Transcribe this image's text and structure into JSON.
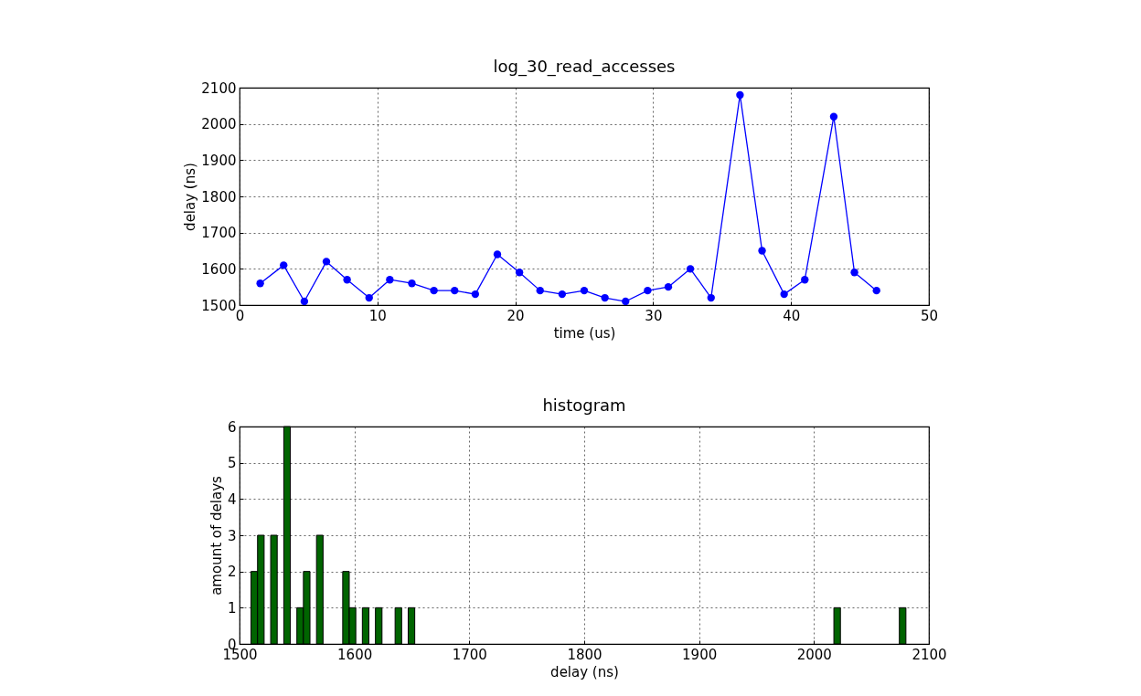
{
  "chart_data": [
    {
      "type": "line",
      "title": "log_30_read_accesses",
      "xlabel": "time (us)",
      "ylabel": "delay (ns)",
      "marker": "circle",
      "grid": true,
      "x": [
        1.5,
        3.2,
        4.7,
        6.3,
        7.8,
        9.4,
        10.9,
        12.5,
        14.1,
        15.6,
        17.1,
        18.7,
        20.3,
        21.8,
        23.4,
        25.0,
        26.5,
        28.0,
        29.6,
        31.1,
        32.7,
        34.2,
        36.3,
        37.9,
        39.5,
        41.0,
        43.1,
        44.6,
        46.2
      ],
      "series": [
        {
          "color": "#0000ff",
          "values": [
            1560,
            1610,
            1510,
            1620,
            1570,
            1520,
            1570,
            1560,
            1540,
            1540,
            1530,
            1640,
            1590,
            1540,
            1530,
            1540,
            1520,
            1510,
            1540,
            1550,
            1600,
            1520,
            2080,
            1650,
            1530,
            1570,
            2020,
            1590,
            1540
          ]
        }
      ],
      "xlim": [
        0,
        50
      ],
      "xticks": [
        0,
        10,
        20,
        30,
        40,
        50
      ],
      "ylim": [
        1500,
        2100
      ],
      "yticks": [
        1500,
        1600,
        1700,
        1800,
        1900,
        2000,
        2100
      ]
    },
    {
      "type": "histogram",
      "title": "histogram",
      "xlabel": "delay (ns)",
      "ylabel": "amount of delays",
      "grid": true,
      "color": "#006400",
      "bins": [
        1510,
        1515.7,
        1521.4,
        1527.1,
        1532.8,
        1538.5,
        1544.2,
        1549.9,
        1555.6,
        1561.3,
        1567,
        1572.7,
        1578.4,
        1584.1,
        1589.8,
        1595.5,
        1601.2,
        1606.9,
        1612.6,
        1618.3,
        1624,
        1629.7,
        1635.4,
        1641.1,
        1646.8,
        1652.5,
        1658.2,
        1663.9,
        1669.6,
        1675.3,
        1681,
        1686.7,
        1692.4,
        1698.1,
        1703.8,
        1709.5,
        1715.2,
        1720.9,
        1726.6,
        1732.3,
        1738,
        1743.7,
        1749.4,
        1755.1,
        1760.8,
        1766.5,
        1772.2,
        1777.9,
        1783.6,
        1789.3,
        1795,
        1800.7,
        1806.4,
        1812.1,
        1817.8,
        1823.5,
        1829.2,
        1834.9,
        1840.6,
        1846.3,
        1852,
        1857.7,
        1863.4,
        1869.1,
        1874.8,
        1880.5,
        1886.2,
        1891.9,
        1897.6,
        1903.3,
        1909,
        1914.7,
        1920.4,
        1926.1,
        1931.8,
        1937.5,
        1943.2,
        1948.9,
        1954.6,
        1960.3,
        1966,
        1971.7,
        1977.4,
        1983.1,
        1988.8,
        1994.5,
        2000.2,
        2005.9,
        2011.6,
        2017.3,
        2023,
        2028.7,
        2034.4,
        2040.1,
        2045.8,
        2051.5,
        2057.2,
        2062.9,
        2068.6,
        2074.3,
        2080
      ],
      "values": [
        2,
        3,
        0,
        3,
        0,
        6,
        0,
        1,
        2,
        0,
        3,
        0,
        0,
        0,
        2,
        1,
        0,
        1,
        0,
        1,
        0,
        0,
        1,
        0,
        1,
        0,
        0,
        0,
        0,
        0,
        0,
        0,
        0,
        0,
        0,
        0,
        0,
        0,
        0,
        0,
        0,
        0,
        0,
        0,
        0,
        0,
        0,
        0,
        0,
        0,
        0,
        0,
        0,
        0,
        0,
        0,
        0,
        0,
        0,
        0,
        0,
        0,
        0,
        0,
        0,
        0,
        0,
        0,
        0,
        0,
        0,
        0,
        0,
        0,
        0,
        0,
        0,
        0,
        0,
        0,
        0,
        0,
        0,
        0,
        0,
        0,
        0,
        0,
        0,
        1,
        0,
        0,
        0,
        0,
        0,
        0,
        0,
        0,
        0,
        1
      ],
      "xlim": [
        1500,
        2100
      ],
      "xticks": [
        1500,
        1600,
        1700,
        1800,
        1900,
        2000,
        2100
      ],
      "ylim": [
        0,
        6
      ],
      "yticks": [
        0,
        1,
        2,
        3,
        4,
        5,
        6
      ]
    }
  ]
}
